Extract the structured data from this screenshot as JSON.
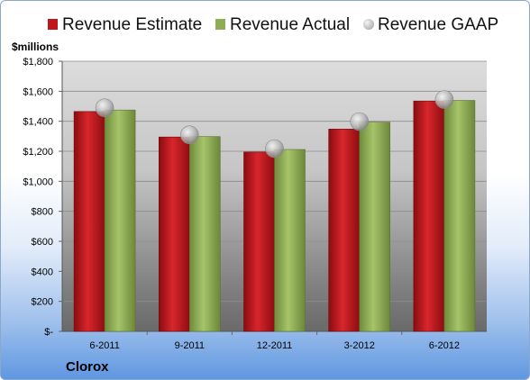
{
  "unit_label": "$millions",
  "company": "Clorox",
  "colors": {
    "estimate": "#c0151b",
    "actual": "#8fad55",
    "gaap": "#b7b7b7"
  },
  "chart_data": {
    "type": "bar",
    "categories": [
      "6-2011",
      "9-2011",
      "12-2011",
      "3-2012",
      "6-2012"
    ],
    "series": [
      {
        "name": "Revenue Estimate",
        "kind": "bar",
        "values": [
          1465,
          1295,
          1195,
          1348,
          1535
        ]
      },
      {
        "name": "Revenue Actual",
        "kind": "bar",
        "values": [
          1475,
          1298,
          1212,
          1394,
          1539
        ]
      },
      {
        "name": "Revenue GAAP",
        "kind": "marker",
        "values": [
          1490,
          1310,
          1218,
          1398,
          1545
        ]
      }
    ],
    "ylim": [
      0,
      1800
    ],
    "yticks": [
      0,
      200,
      400,
      600,
      800,
      1000,
      1200,
      1400,
      1600,
      1800
    ],
    "ytick_labels": [
      "$-",
      "$200",
      "$400",
      "$600",
      "$800",
      "$1,000",
      "$1,200",
      "$1,400",
      "$1,600",
      "$1,800"
    ],
    "grid": true,
    "legend_position": "top"
  }
}
